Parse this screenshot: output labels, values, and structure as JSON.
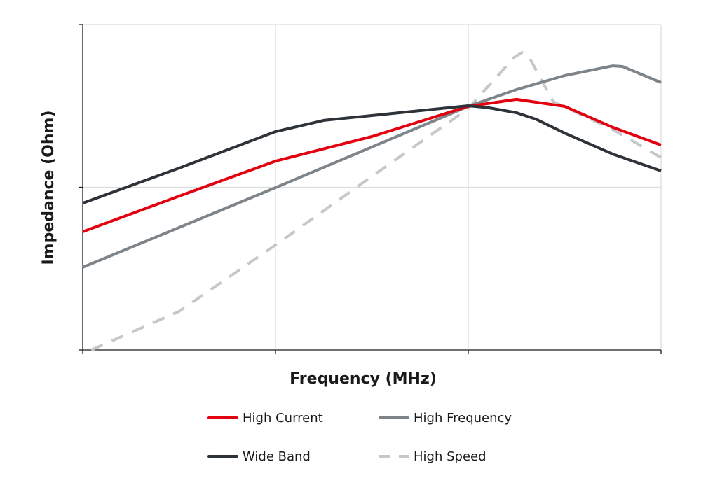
{
  "chart_data": {
    "type": "line",
    "title": "",
    "xlabel": "Frequency (MHz)",
    "ylabel": "Impedance (Ohm)",
    "x_scale": "log",
    "y_scale": "log",
    "xlim": [
      0,
      3
    ],
    "ylim": [
      0,
      2
    ],
    "x_gridlines": [
      1,
      2,
      3
    ],
    "y_gridlines": [
      1,
      2
    ],
    "grid": true,
    "tick_labels": false,
    "legend_position": "bottom",
    "series": [
      {
        "name": "High Current",
        "color": "#e3000f",
        "dash": false,
        "points": [
          [
            0,
            0.727
          ],
          [
            0.5,
            0.946
          ],
          [
            1,
            1.161
          ],
          [
            1.5,
            1.312
          ],
          [
            2,
            1.497
          ],
          [
            2.25,
            1.54
          ],
          [
            2.5,
            1.497
          ],
          [
            2.75,
            1.368
          ],
          [
            3,
            1.26
          ]
        ]
      },
      {
        "name": "High Frequency",
        "color": "#7d858b",
        "dash": false,
        "points": [
          [
            0,
            0.508
          ],
          [
            1,
            0.998
          ],
          [
            2,
            1.497
          ],
          [
            2.25,
            1.6
          ],
          [
            2.5,
            1.686
          ],
          [
            2.75,
            1.746
          ],
          [
            2.8,
            1.742
          ],
          [
            3,
            1.643
          ]
        ]
      },
      {
        "name": "Wide Band",
        "color": "#2d3339",
        "dash": false,
        "points": [
          [
            0,
            0.903
          ],
          [
            0.5,
            1.118
          ],
          [
            1,
            1.342
          ],
          [
            1.25,
            1.411
          ],
          [
            1.5,
            1.441
          ],
          [
            1.75,
            1.471
          ],
          [
            2,
            1.501
          ],
          [
            2.1,
            1.49
          ],
          [
            2.25,
            1.458
          ],
          [
            2.35,
            1.419
          ],
          [
            2.5,
            1.333
          ],
          [
            2.75,
            1.204
          ],
          [
            3,
            1.101
          ]
        ]
      },
      {
        "name": "High Speed",
        "color": "#c5c8ca",
        "dash": true,
        "points": [
          [
            0.044,
            0
          ],
          [
            0.5,
            0.237
          ],
          [
            1,
            0.645
          ],
          [
            1.5,
            1.067
          ],
          [
            2,
            1.484
          ],
          [
            2.24,
            1.8
          ],
          [
            2.28,
            1.828
          ],
          [
            2.32,
            1.79
          ],
          [
            2.44,
            1.527
          ],
          [
            2.75,
            1.355
          ],
          [
            3,
            1.183
          ]
        ]
      }
    ]
  }
}
